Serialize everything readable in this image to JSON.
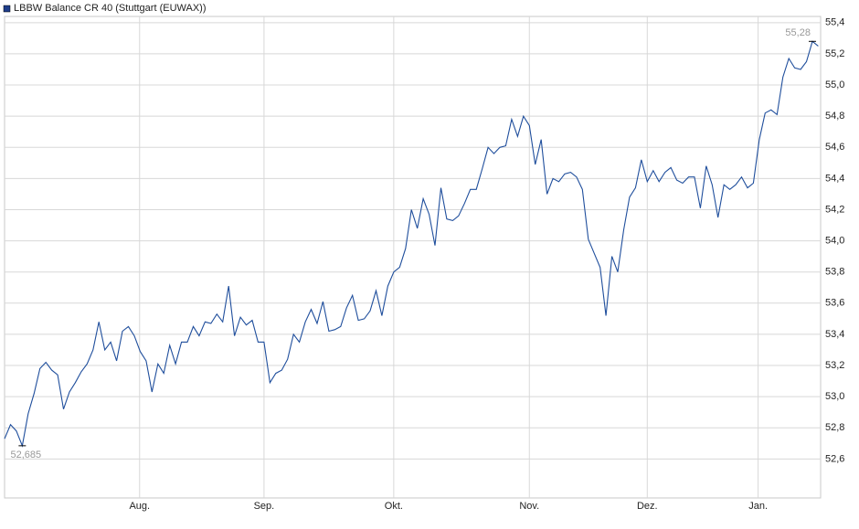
{
  "chart_data": {
    "type": "line",
    "series": [
      {
        "name": "LBBW Balance CR 40 (Stuttgart (EUWAX))",
        "color": "#1f4e9c",
        "values": [
          52.73,
          52.82,
          52.78,
          52.685,
          52.89,
          53.02,
          53.18,
          53.22,
          53.17,
          53.14,
          52.92,
          53.03,
          53.09,
          53.16,
          53.21,
          53.3,
          53.48,
          53.3,
          53.35,
          53.23,
          53.42,
          53.45,
          53.39,
          53.29,
          53.23,
          53.03,
          53.21,
          53.15,
          53.33,
          53.21,
          53.35,
          53.35,
          53.45,
          53.39,
          53.48,
          53.47,
          53.53,
          53.48,
          53.71,
          53.39,
          53.51,
          53.46,
          53.49,
          53.35,
          53.35,
          53.09,
          53.15,
          53.17,
          53.24,
          53.4,
          53.35,
          53.48,
          53.56,
          53.47,
          53.61,
          53.42,
          53.43,
          53.45,
          53.57,
          53.65,
          53.49,
          53.5,
          53.55,
          53.68,
          53.52,
          53.71,
          53.8,
          53.83,
          53.95,
          54.2,
          54.08,
          54.27,
          54.17,
          53.97,
          54.34,
          54.14,
          54.13,
          54.16,
          54.24,
          54.33,
          54.33,
          54.46,
          54.6,
          54.56,
          54.6,
          54.61,
          54.78,
          54.67,
          54.8,
          54.74,
          54.49,
          54.65,
          54.3,
          54.4,
          54.38,
          54.43,
          54.44,
          54.41,
          54.33,
          54.01,
          53.92,
          53.83,
          53.52,
          53.9,
          53.8,
          54.07,
          54.28,
          54.34,
          54.52,
          54.38,
          54.45,
          54.38,
          54.44,
          54.47,
          54.39,
          54.37,
          54.41,
          54.41,
          54.21,
          54.48,
          54.36,
          54.15,
          54.36,
          54.33,
          54.36,
          54.41,
          54.34,
          54.37,
          54.65,
          54.82,
          54.84,
          54.81,
          55.05,
          55.17,
          55.11,
          55.1,
          55.15,
          55.28,
          55.25
        ]
      }
    ],
    "high_label": {
      "value": 55.28,
      "label": "55,28"
    },
    "low_label": {
      "value": 52.685,
      "label": "52,685"
    },
    "xlim": [
      0,
      138.4
    ],
    "xticks": [
      {
        "value": 22.9,
        "label": "Aug."
      },
      {
        "value": 44.0,
        "label": "Sep."
      },
      {
        "value": 66.0,
        "label": "Okt."
      },
      {
        "value": 89.0,
        "label": "Nov."
      },
      {
        "value": 109.0,
        "label": "Dez."
      },
      {
        "value": 127.8,
        "label": "Jan."
      }
    ],
    "ylim": [
      52.35,
      55.44
    ],
    "yticks": [
      {
        "value": 52.6,
        "label": "52,6"
      },
      {
        "value": 52.8,
        "label": "52,8"
      },
      {
        "value": 53.0,
        "label": "53,0"
      },
      {
        "value": 53.2,
        "label": "53,2"
      },
      {
        "value": 53.4,
        "label": "53,4"
      },
      {
        "value": 53.6,
        "label": "53,6"
      },
      {
        "value": 53.8,
        "label": "53,8"
      },
      {
        "value": 54.0,
        "label": "54,0"
      },
      {
        "value": 54.2,
        "label": "54,2"
      },
      {
        "value": 54.4,
        "label": "54,4"
      },
      {
        "value": 54.6,
        "label": "54,6"
      },
      {
        "value": 54.8,
        "label": "54,8"
      },
      {
        "value": 55.0,
        "label": "55,0"
      },
      {
        "value": 55.2,
        "label": "55,2"
      },
      {
        "value": 55.4,
        "label": "55,4"
      }
    ],
    "grid": true
  }
}
